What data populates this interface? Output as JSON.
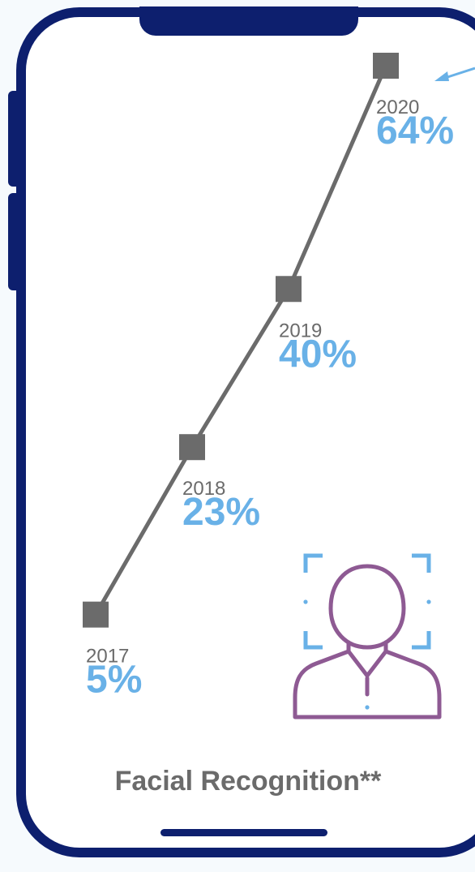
{
  "chart_data": {
    "type": "line",
    "title": "Facial Recognition**",
    "x": [
      "2017",
      "2018",
      "2019",
      "2020"
    ],
    "values": [
      5,
      23,
      40,
      64
    ],
    "value_labels": [
      "5%",
      "23%",
      "40%",
      "64%"
    ],
    "unit": "%",
    "ylim": [
      0,
      64
    ],
    "grid": false,
    "series_color": "#6b6b6b",
    "value_color": "#69b1e7"
  },
  "colors": {
    "frame": "#0d1f6e",
    "face_icon_stroke": "#8e5a93",
    "face_frame_stroke": "#69b1e7",
    "pointer_arrow": "#69b1e7"
  },
  "icons": {
    "face_scan": "face-recognition-icon",
    "pointer": "arrow-icon"
  }
}
